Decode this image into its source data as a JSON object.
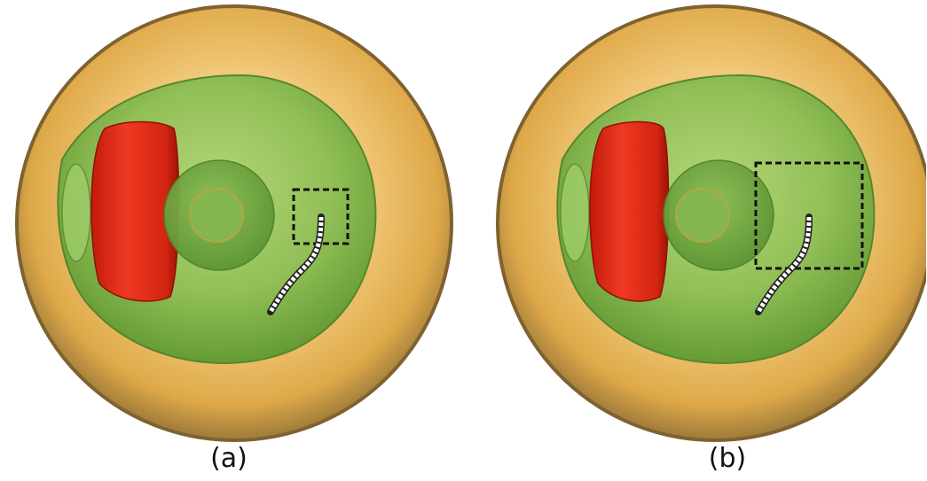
{
  "panels": [
    {
      "id": "a",
      "label": "(a)",
      "selection_box": "small"
    },
    {
      "id": "b",
      "label": "(b)",
      "selection_box": "large"
    }
  ],
  "colors": {
    "outer_shell": "#e9b558",
    "outer_shell_light": "#f3d08f",
    "outer_rim": "#9a7a3e",
    "cytoplasm": "#7fb24a",
    "cytoplasm_light": "#a6cf6c",
    "inner_sphere": "#6aa23c",
    "red_body": "#e02a18",
    "red_body_dark": "#a81508",
    "box_stroke": "#111111",
    "trajectory": "#ffffff"
  }
}
